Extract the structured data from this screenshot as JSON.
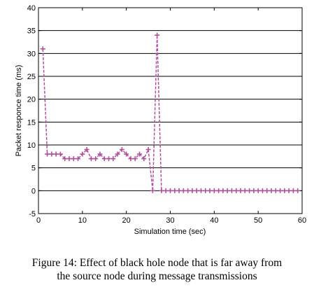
{
  "chart_data": {
    "type": "line",
    "title": "",
    "xlabel": "Simulation time (sec)",
    "ylabel": "Packet responce time (ms)",
    "xlim": [
      0,
      60
    ],
    "ylim": [
      -5,
      40
    ],
    "xticks": [
      0,
      10,
      20,
      30,
      40,
      50,
      60
    ],
    "yticks": [
      -5,
      0,
      5,
      10,
      15,
      20,
      25,
      30,
      35,
      40
    ],
    "grid": "horizontal",
    "legend": "none",
    "series": [
      {
        "color": "#b0509c",
        "line_style": "dashed",
        "marker": "plus",
        "x": [
          1,
          2,
          3,
          4,
          5,
          6,
          7,
          8,
          9,
          10,
          11,
          12,
          13,
          14,
          15,
          16,
          17,
          18,
          19,
          20,
          21,
          22,
          23,
          24,
          25,
          26,
          27,
          28,
          29,
          30,
          31,
          32,
          33,
          34,
          35,
          36,
          37,
          38,
          39,
          40,
          41,
          42,
          43,
          44,
          45,
          46,
          47,
          48,
          49,
          50,
          51,
          52,
          53,
          54,
          55,
          56,
          57,
          58,
          59
        ],
        "y": [
          31,
          8,
          8,
          8,
          8,
          7,
          7,
          7,
          7,
          8,
          9,
          7,
          7,
          8,
          7,
          7,
          7,
          8,
          9,
          8,
          7,
          7,
          8,
          7,
          9,
          0,
          34,
          0,
          0,
          0,
          0,
          0,
          0,
          0,
          0,
          0,
          0,
          0,
          0,
          0,
          0,
          0,
          0,
          0,
          0,
          0,
          0,
          0,
          0,
          0,
          0,
          0,
          0,
          0,
          0,
          0,
          0,
          0,
          0
        ]
      }
    ]
  },
  "caption": {
    "line1": "Figure 14: Effect of black hole node that is far away from",
    "line2": "the source node during message transmissions"
  }
}
